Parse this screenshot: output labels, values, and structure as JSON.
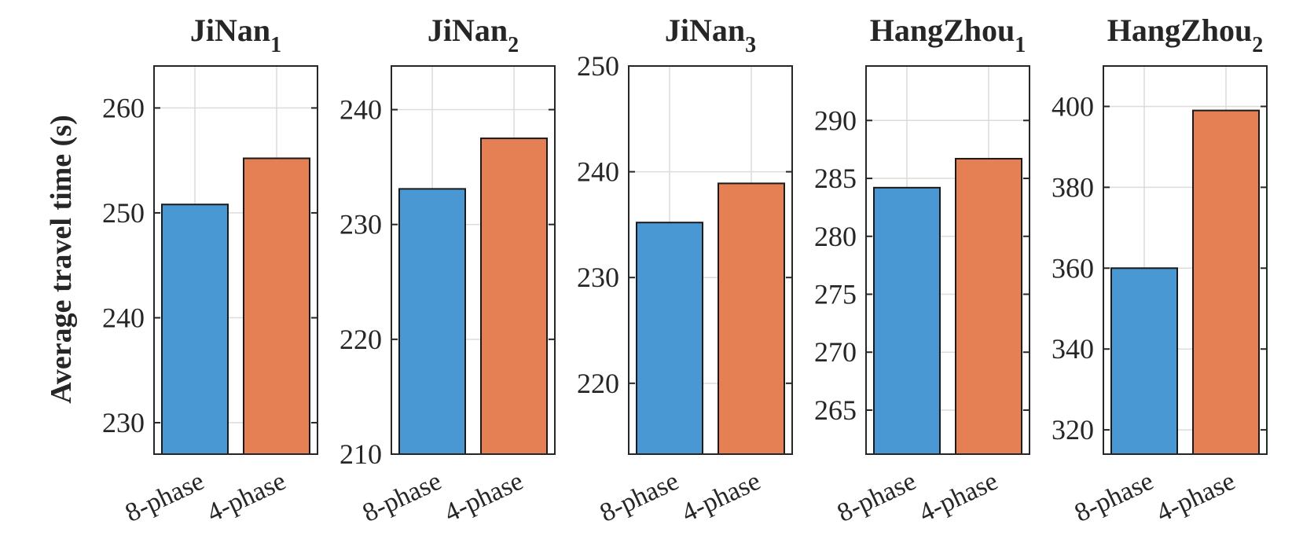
{
  "chart_data": {
    "type": "bar",
    "ylabel": "Average travel time (s)",
    "categories": [
      "8-phase",
      "4-phase"
    ],
    "colors": [
      "#4A98D3",
      "#E58054"
    ],
    "subplots": [
      {
        "title": "JiNan",
        "subscript": "1",
        "values": [
          250.8,
          255.2
        ],
        "ylim": [
          227,
          264
        ],
        "yticks": [
          230,
          240,
          250,
          260
        ]
      },
      {
        "title": "JiNan",
        "subscript": "2",
        "values": [
          233.1,
          237.5
        ],
        "ylim": [
          210,
          243.8
        ],
        "yticks": [
          210,
          220,
          230,
          240
        ]
      },
      {
        "title": "JiNan",
        "subscript": "3",
        "values": [
          235.2,
          238.9
        ],
        "ylim": [
          213.3,
          250
        ],
        "yticks": [
          220,
          230,
          240,
          250
        ]
      },
      {
        "title": "HangZhou",
        "subscript": "1",
        "values": [
          284.2,
          286.7
        ],
        "ylim": [
          261.2,
          294.7
        ],
        "yticks": [
          265,
          270,
          275,
          280,
          285,
          290
        ]
      },
      {
        "title": "HangZhou",
        "subscript": "2",
        "values": [
          360,
          399
        ],
        "ylim": [
          314,
          410
        ],
        "yticks": [
          320,
          340,
          360,
          380,
          400
        ]
      }
    ]
  }
}
